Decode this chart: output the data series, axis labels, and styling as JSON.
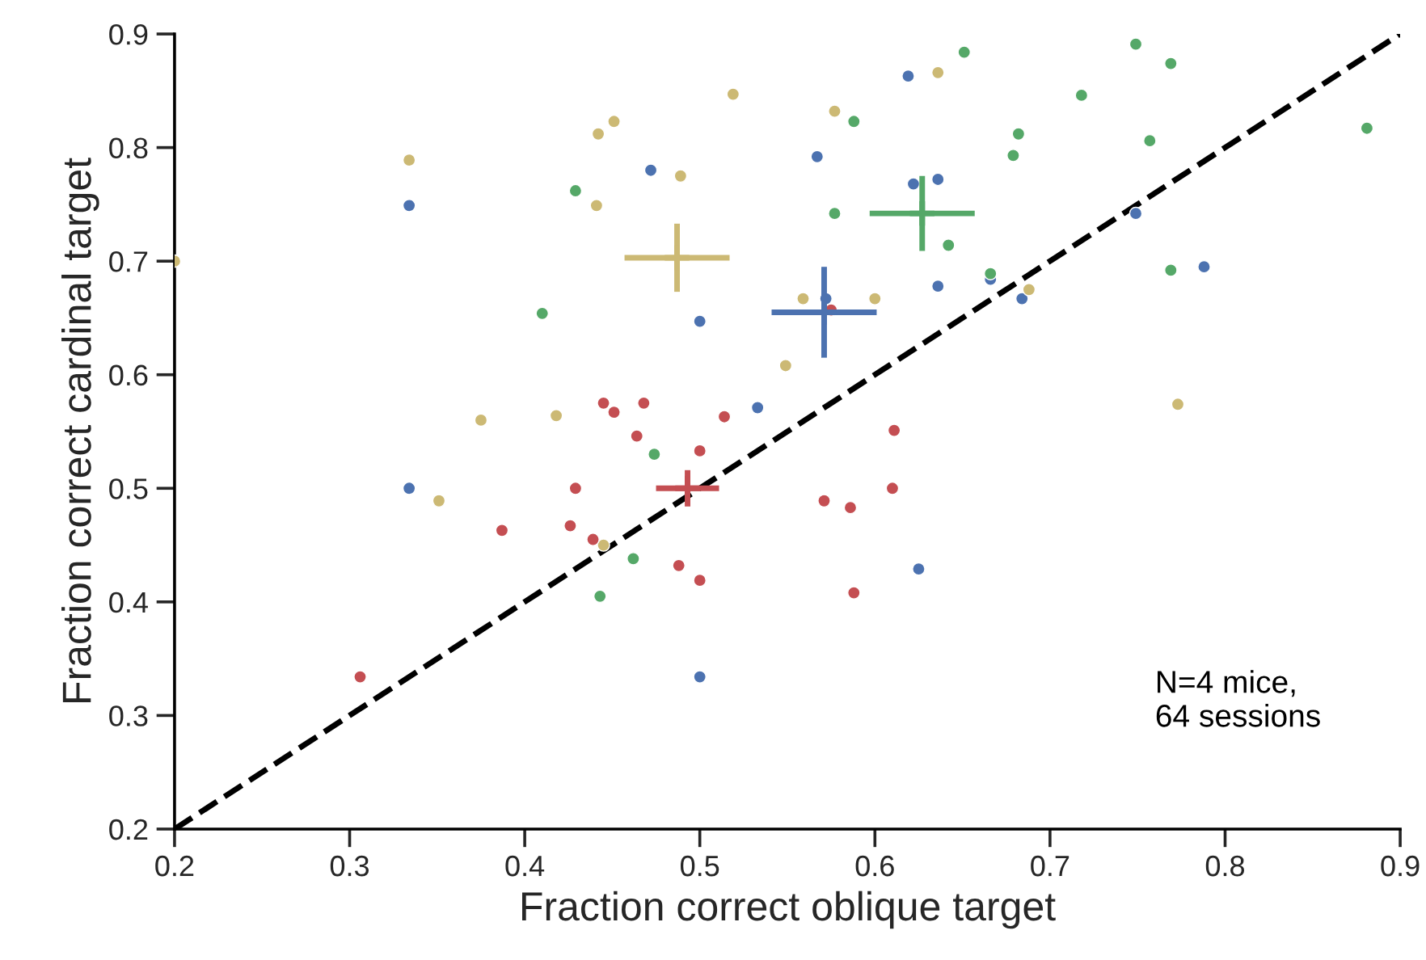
{
  "chart_data": {
    "type": "scatter",
    "xlabel": "Fraction correct oblique target",
    "ylabel": "Fraction correct cardinal target",
    "xlim": [
      0.2,
      0.9
    ],
    "ylim": [
      0.2,
      0.9
    ],
    "xticks": [
      0.2,
      0.3,
      0.4,
      0.5,
      0.6,
      0.7,
      0.8,
      0.9
    ],
    "yticks": [
      0.2,
      0.3,
      0.4,
      0.5,
      0.6,
      0.7,
      0.8,
      0.9
    ],
    "marker": "circle",
    "grid": false,
    "annotations": [
      "N=4 mice,\n64 sessions"
    ],
    "series": [
      {
        "color": "#4c72b0",
        "x": [
          0.334,
          0.334,
          0.472,
          0.5,
          0.5,
          0.533,
          0.567,
          0.572,
          0.619,
          0.622,
          0.636,
          0.636,
          0.666,
          0.684,
          0.749,
          0.788,
          0.625
        ],
        "values": [
          0.749,
          0.5,
          0.78,
          0.647,
          0.334,
          0.571,
          0.792,
          0.667,
          0.863,
          0.768,
          0.772,
          0.678,
          0.684,
          0.667,
          0.742,
          0.695,
          0.429
        ]
      },
      {
        "color": "#55a868",
        "x": [
          0.429,
          0.41,
          0.651,
          0.749,
          0.769,
          0.718,
          0.588,
          0.682,
          0.679,
          0.757,
          0.881,
          0.577,
          0.642,
          0.666,
          0.769,
          0.474,
          0.462,
          0.443
        ],
        "values": [
          0.762,
          0.654,
          0.884,
          0.891,
          0.874,
          0.846,
          0.823,
          0.812,
          0.793,
          0.806,
          0.817,
          0.742,
          0.714,
          0.689,
          0.692,
          0.53,
          0.438,
          0.405
        ]
      },
      {
        "color": "#ccb974",
        "x": [
          0.519,
          0.451,
          0.442,
          0.334,
          0.489,
          0.441,
          0.2,
          0.549,
          0.375,
          0.418,
          0.636,
          0.577,
          0.559,
          0.6,
          0.688,
          0.773,
          0.351,
          0.445
        ],
        "values": [
          0.847,
          0.823,
          0.812,
          0.789,
          0.775,
          0.749,
          0.7,
          0.608,
          0.56,
          0.564,
          0.866,
          0.832,
          0.667,
          0.667,
          0.675,
          0.574,
          0.489,
          0.45
        ]
      },
      {
        "color": "#c44e52",
        "x": [
          0.464,
          0.5,
          0.429,
          0.387,
          0.426,
          0.439,
          0.488,
          0.5,
          0.306,
          0.445,
          0.451,
          0.468,
          0.514,
          0.575,
          0.611,
          0.61,
          0.571,
          0.586,
          0.588
        ],
        "values": [
          0.546,
          0.533,
          0.5,
          0.463,
          0.467,
          0.455,
          0.432,
          0.419,
          0.334,
          0.575,
          0.567,
          0.575,
          0.563,
          0.657,
          0.551,
          0.5,
          0.489,
          0.483,
          0.408
        ]
      },
      {
        "color": "#ccb974",
        "marker": "cross",
        "x": [
          0.487
        ],
        "values": [
          0.703
        ],
        "errors": [
          0.03
        ],
        "xerrors": [
          0.03
        ]
      },
      {
        "color": "#4c72b0",
        "marker": "cross",
        "x": [
          0.571
        ],
        "values": [
          0.655
        ],
        "errors": [
          0.04
        ],
        "xerrors": [
          0.03
        ]
      },
      {
        "color": "#55a868",
        "marker": "cross",
        "x": [
          0.627
        ],
        "values": [
          0.742
        ],
        "errors": [
          0.033
        ],
        "xerrors": [
          0.03
        ]
      },
      {
        "color": "#c44e52",
        "marker": "cross",
        "x": [
          0.493
        ],
        "values": [
          0.5
        ],
        "errors": [
          0.016
        ],
        "xerrors": [
          0.018
        ]
      },
      {
        "type": "line",
        "color": "#000000",
        "line_style": "dashed",
        "marker": "none",
        "x": [
          0.2,
          0.9
        ],
        "values": [
          0.2,
          0.9
        ]
      }
    ]
  }
}
